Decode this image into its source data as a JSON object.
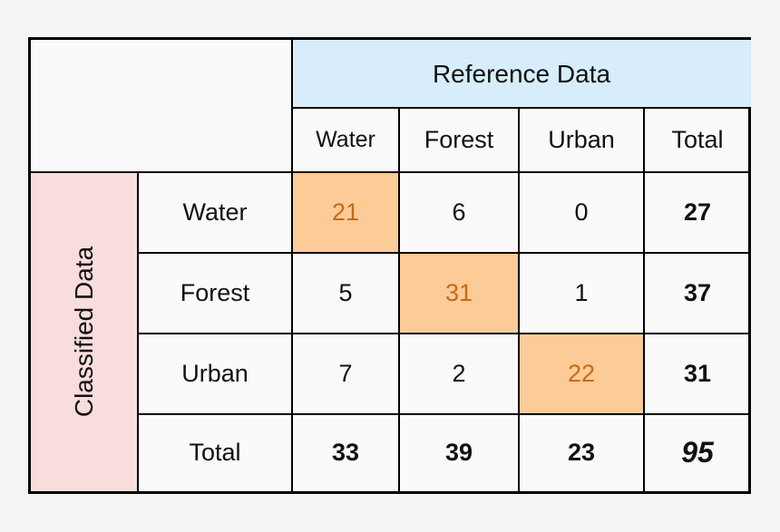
{
  "matrix": {
    "reference_label": "Reference Data",
    "classified_label": "Classified Data",
    "columns": [
      "Water",
      "Forest",
      "Urban",
      "Total"
    ],
    "rows": [
      {
        "label": "Water",
        "values": [
          "21",
          "6",
          "0"
        ],
        "total": "27"
      },
      {
        "label": "Forest",
        "values": [
          "5",
          "31",
          "1"
        ],
        "total": "37"
      },
      {
        "label": "Urban",
        "values": [
          "7",
          "2",
          "22"
        ],
        "total": "31"
      }
    ],
    "total_row": {
      "label": "Total",
      "values": [
        "33",
        "39",
        "23"
      ],
      "total": "95"
    }
  },
  "colors": {
    "reference_header": "#d7edfb",
    "classified_header": "#f7dddc",
    "diagonal_fill": "#fdcb97",
    "diagonal_text": "#c86a14"
  }
}
